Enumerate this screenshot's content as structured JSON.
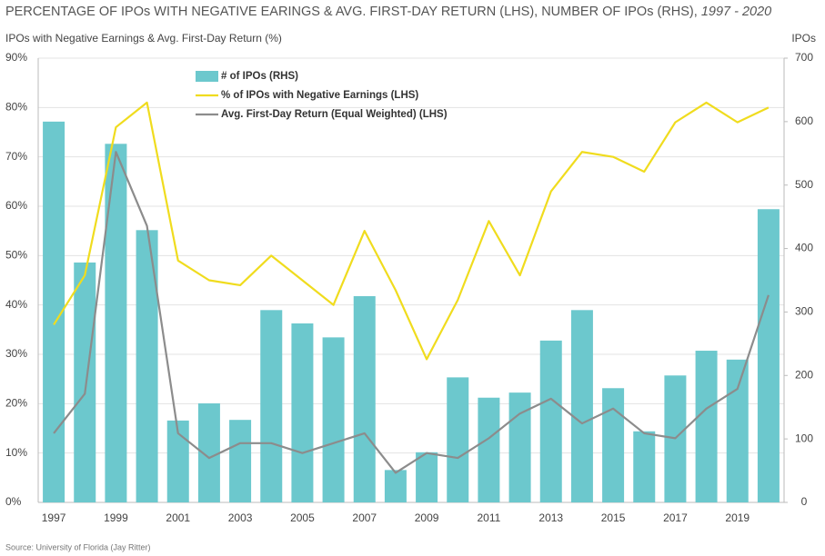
{
  "chart_data": {
    "type": "combo",
    "title": "PERCENTAGE OF IPOs WITH NEGATIVE EARINGS & AVG. FIRST-DAY RETURN (LHS), NUMBER OF IPOs (RHS), ",
    "title_period": "1997 - 2020",
    "y_label": "IPOs with Negative Earnings & Avg. First-Day Return (%)",
    "y2_label": "IPOs",
    "source": "Source: University of Florida (Jay Ritter)",
    "categories": [
      "1997",
      null,
      "1999",
      null,
      "2001",
      null,
      "2003",
      null,
      "2005",
      null,
      "2007",
      null,
      "2009",
      null,
      "2011",
      null,
      "2013",
      null,
      "2015",
      null,
      "2017",
      null,
      "2019",
      null
    ],
    "ylim": [
      0,
      90
    ],
    "yticks": [
      {
        "value": 0,
        "label": "0%"
      },
      {
        "value": 10,
        "label": "10%"
      },
      {
        "value": 20,
        "label": "20%"
      },
      {
        "value": 30,
        "label": "30%"
      },
      {
        "value": 40,
        "label": "40%"
      },
      {
        "value": 50,
        "label": "50%"
      },
      {
        "value": 60,
        "label": "60%"
      },
      {
        "value": 70,
        "label": "70%"
      },
      {
        "value": 80,
        "label": "80%"
      },
      {
        "value": 90,
        "label": "90%"
      }
    ],
    "y2lim": [
      0,
      700
    ],
    "y2ticks": [
      0,
      100,
      200,
      300,
      400,
      500,
      600,
      700
    ],
    "grid": true,
    "series": [
      {
        "name": "# of IPOs (RHS)",
        "type": "bar",
        "axis": "y2",
        "color": "#6cc8cd",
        "values": [
          600,
          378,
          565,
          429,
          129,
          156,
          130,
          303,
          282,
          260,
          325,
          51,
          79,
          197,
          165,
          173,
          255,
          303,
          180,
          112,
          200,
          239,
          225,
          462
        ]
      },
      {
        "name": "% of IPOs with Negative Earnings (LHS)",
        "type": "line",
        "color": "#f0dc1e",
        "values": [
          36,
          46,
          76,
          81,
          49,
          45,
          44,
          50,
          45,
          40,
          55,
          43,
          29,
          41,
          57,
          46,
          63,
          71,
          70,
          67,
          77,
          81,
          77,
          80
        ]
      },
      {
        "name": "Avg. First-Day Return (Equal Weighted) (LHS)",
        "type": "line",
        "color": "#8c8c8c",
        "values": [
          14,
          22,
          71,
          56,
          14,
          9,
          12,
          12,
          10,
          12,
          14,
          6,
          10,
          9,
          13,
          18,
          21,
          16,
          19,
          14,
          13,
          19,
          23,
          42
        ]
      }
    ]
  }
}
